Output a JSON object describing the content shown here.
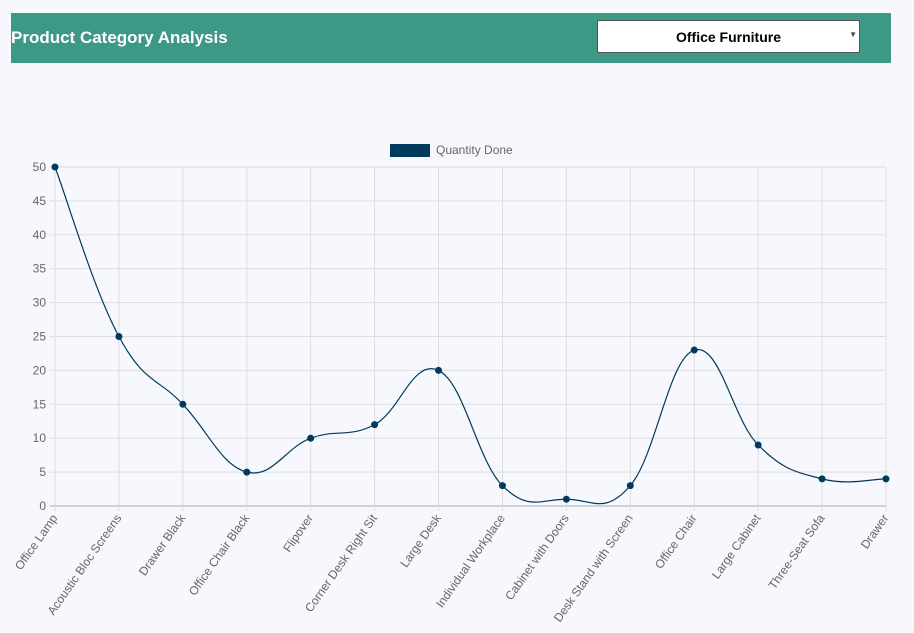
{
  "header": {
    "title": "Product Category Analysis",
    "category_select": {
      "value": "Office Furniture"
    }
  },
  "chart_data": {
    "type": "line",
    "categories": [
      "Office Lamp",
      "Acoustic Bloc Screens",
      "Drawer Black",
      "Office Chair Black",
      "Flipover",
      "Corner Desk Right Sit",
      "Large Desk",
      "Individual Workplace",
      "Cabinet with Doors",
      "Desk Stand with Screen",
      "Office Chair",
      "Large Cabinet",
      "Three-Seat Sofa",
      "Drawer"
    ],
    "series": [
      {
        "name": "Quantity Done",
        "values": [
          50,
          25,
          15,
          5,
          10,
          12,
          20,
          3,
          1,
          3,
          23,
          9,
          4,
          4
        ],
        "color": "#003a5c"
      }
    ],
    "yticks": [
      0,
      5,
      10,
      15,
      20,
      25,
      30,
      35,
      40,
      45,
      50
    ],
    "ylim": [
      0,
      50
    ],
    "grid": true,
    "legend": "top-center"
  }
}
